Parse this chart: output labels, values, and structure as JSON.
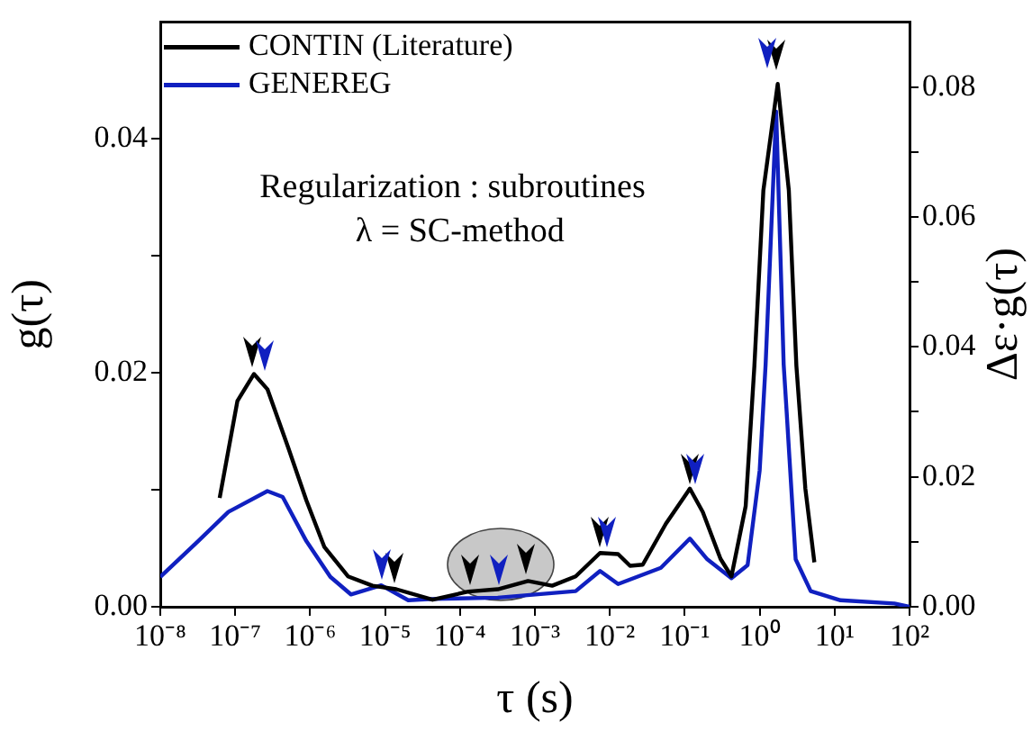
{
  "chart_data": {
    "type": "line",
    "xlabel": "τ (s)",
    "ylabel": "g(τ)",
    "y2label": "Δε·g(τ)",
    "annotations": [
      "Regularization : subroutines",
      "λ = SC-method"
    ],
    "log": "x",
    "grid": false,
    "legend": "top left",
    "marker": "none",
    "line_style": "solid",
    "xlim": [
      1e-08,
      100
    ],
    "xticks": [
      {
        "value": 1e-08,
        "label": "10⁻⁸"
      },
      {
        "value": 1e-07,
        "label": "10⁻⁷"
      },
      {
        "value": 1e-06,
        "label": "10⁻⁶"
      },
      {
        "value": 1e-05,
        "label": "10⁻⁵"
      },
      {
        "value": 0.0001,
        "label": "10⁻⁴"
      },
      {
        "value": 0.001,
        "label": "10⁻³"
      },
      {
        "value": 0.01,
        "label": "10⁻²"
      },
      {
        "value": 0.1,
        "label": "10⁻¹"
      },
      {
        "value": 1,
        "label": "10⁰"
      },
      {
        "value": 10,
        "label": "10¹"
      },
      {
        "value": 100,
        "label": "10²"
      }
    ],
    "ylim": [
      0,
      0.05
    ],
    "yticks": [
      {
        "value": 0,
        "label": "0.00"
      },
      {
        "value": 0.01,
        "label": null
      },
      {
        "value": 0.02,
        "label": "0.02"
      },
      {
        "value": 0.03,
        "label": null
      },
      {
        "value": 0.04,
        "label": "0.04"
      }
    ],
    "y2lim": [
      0,
      0.09
    ],
    "y2ticks": [
      {
        "value": 0,
        "label": "0.00"
      },
      {
        "value": 0.01,
        "label": null
      },
      {
        "value": 0.02,
        "label": "0.02"
      },
      {
        "value": 0.03,
        "label": null
      },
      {
        "value": 0.04,
        "label": "0.04"
      },
      {
        "value": 0.05,
        "label": null
      },
      {
        "value": 0.06,
        "label": "0.06"
      },
      {
        "value": 0.07,
        "label": null
      },
      {
        "value": 0.08,
        "label": "0.08"
      }
    ],
    "series": [
      {
        "name": "CONTIN (Literature)",
        "color": "#000000",
        "x": [
          6.2e-08,
          1.07e-07,
          1.78e-07,
          2.69e-07,
          5.1e-07,
          8.9e-07,
          1.55e-06,
          3.2e-06,
          6.8e-06,
          1.41e-05,
          4.3e-05,
          0.000129,
          0.00032,
          0.00081,
          0.0017,
          0.0035,
          0.0074,
          0.0129,
          0.0186,
          0.0275,
          0.056,
          0.117,
          0.174,
          0.3,
          0.42,
          0.65,
          0.85,
          1.12,
          1.74,
          2.45,
          3.09,
          4.07,
          5.37
        ],
        "values": [
          0.0093,
          0.0176,
          0.0199,
          0.0186,
          0.0136,
          0.0091,
          0.0051,
          0.0026,
          0.0018,
          0.0015,
          0.0006,
          0.0013,
          0.0015,
          0.0022,
          0.0018,
          0.0026,
          0.0046,
          0.0045,
          0.0035,
          0.0036,
          0.0071,
          0.0101,
          0.0081,
          0.0041,
          0.0026,
          0.0086,
          0.0206,
          0.0356,
          0.0447,
          0.0356,
          0.0206,
          0.0101,
          0.0038
        ]
      },
      {
        "name": "GENEREG",
        "color": "#1020c0",
        "axis": "y2",
        "x": [
          1e-08,
          3.2e-08,
          8.1e-08,
          2.69e-07,
          4.3e-07,
          8.9e-07,
          1.86e-06,
          3.5e-06,
          8.9e-06,
          2.04e-05,
          4.3e-05,
          0.00032,
          0.0035,
          0.0074,
          0.0129,
          0.048,
          0.117,
          0.2,
          0.42,
          0.69,
          1.0,
          1.2,
          1.66,
          2.09,
          2.29,
          3.02,
          4.8,
          12,
          63,
          100
        ],
        "values": [
          0.0046,
          0.0101,
          0.0146,
          0.0178,
          0.0169,
          0.0101,
          0.0046,
          0.0019,
          0.0033,
          0.001,
          0.0012,
          0.0014,
          0.0024,
          0.0055,
          0.0035,
          0.006,
          0.0105,
          0.0073,
          0.0044,
          0.0064,
          0.021,
          0.0373,
          0.0762,
          0.0373,
          0.03,
          0.0073,
          0.0024,
          0.001,
          0.0005,
          0
        ]
      }
    ]
  }
}
